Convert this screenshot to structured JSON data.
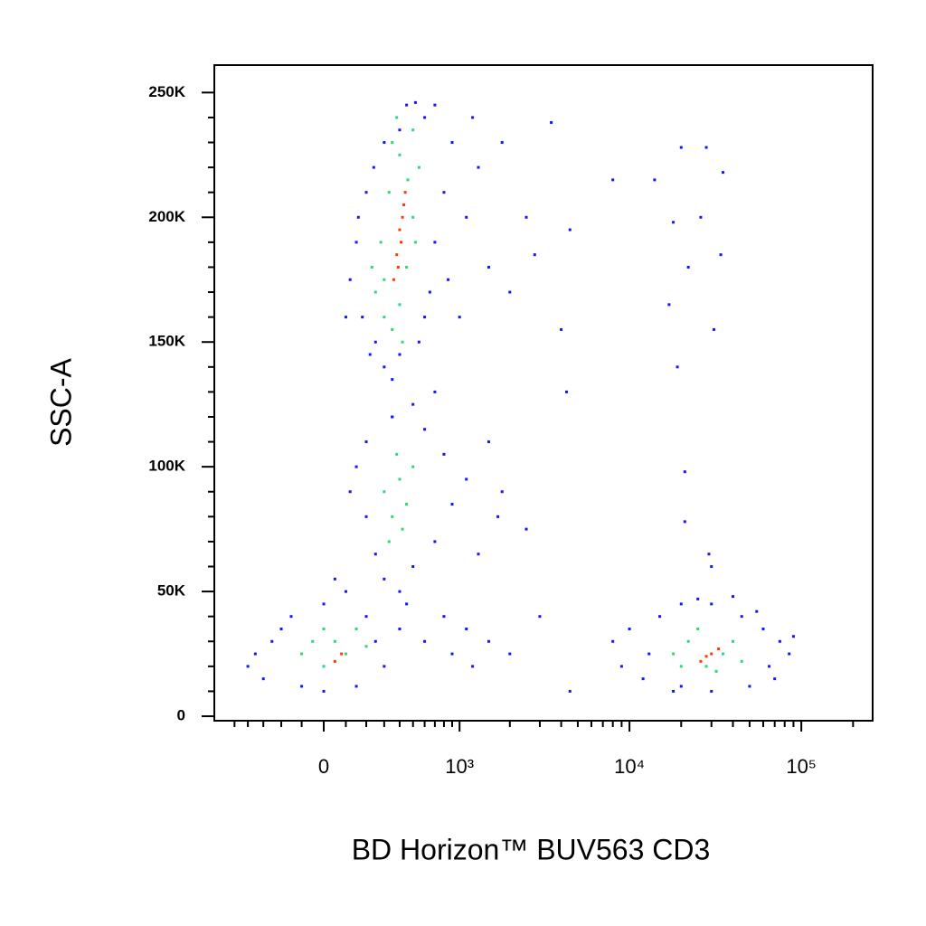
{
  "chart_data": {
    "type": "scatter",
    "xlabel": "BD Horizon™ BUV563 CD3",
    "ylabel": "SSC-A",
    "xscale": "biexponential",
    "xlim": [
      -683,
      260000
    ],
    "ylim": [
      -1800,
      261000
    ],
    "xticks": [
      0,
      {
        "value": 1000,
        "label": "10³"
      },
      {
        "value": 10000,
        "label": "10⁴"
      },
      {
        "value": 100000,
        "label": "10⁵"
      }
    ],
    "xminorticks": [
      -500,
      -400,
      -300,
      -200,
      -100,
      100,
      200,
      300,
      400,
      500,
      600,
      700,
      800,
      900,
      2000,
      3000,
      4000,
      5000,
      6000,
      7000,
      8000,
      9000,
      20000,
      30000,
      40000,
      50000,
      60000,
      70000,
      80000,
      90000,
      200000
    ],
    "yticks": [
      {
        "value": 0,
        "label": "0"
      },
      {
        "value": 50000,
        "label": "50K"
      },
      {
        "value": 100000,
        "label": "100K"
      },
      {
        "value": 150000,
        "label": "150K"
      },
      {
        "value": 200000,
        "label": "200K"
      },
      {
        "value": 250000,
        "label": "250K"
      }
    ],
    "yminorticks": [
      10000,
      20000,
      30000,
      40000,
      60000,
      70000,
      80000,
      90000,
      110000,
      120000,
      130000,
      140000,
      160000,
      170000,
      180000,
      190000,
      210000,
      220000,
      230000,
      240000
    ],
    "series": [
      {
        "color": "#1414ff",
        "x": [
          250,
          180,
          300,
          350,
          400,
          550,
          650,
          700,
          800,
          900,
          600,
          300,
          200,
          150,
          120,
          450,
          520,
          700,
          1100,
          1500,
          2000,
          1300,
          1800,
          2500,
          1000,
          700,
          500,
          350,
          100,
          160,
          240,
          400,
          850,
          1200,
          600,
          220,
          150,
          200,
          250,
          300,
          400,
          500,
          700,
          900,
          1100,
          1500,
          1800,
          600,
          350,
          200,
          2500,
          1300,
          800,
          120,
          450,
          1700,
          -400,
          -300,
          -250,
          -150,
          0,
          100,
          200,
          250,
          300,
          150,
          0,
          -100,
          -350,
          -200,
          50,
          400,
          600,
          900,
          1200,
          1500,
          800,
          2000,
          1100,
          8000,
          9000,
          12000,
          15000,
          20000,
          30000,
          45000,
          60000,
          75000,
          85000,
          70000,
          50000,
          30000,
          20000,
          10000,
          40000,
          90000,
          13000,
          65000,
          55000,
          25000,
          18000,
          3500,
          4500,
          4000,
          4300,
          20000,
          28000,
          14000,
          35000,
          18000,
          26000,
          22000,
          34000,
          31000,
          17000,
          19000,
          21000,
          21000,
          29000,
          3000,
          8000,
          2800,
          30000,
          4500
        ],
        "y": [
          150000,
          160000,
          140000,
          135000,
          145000,
          150000,
          170000,
          190000,
          210000,
          230000,
          240000,
          230000,
          210000,
          190000,
          175000,
          245000,
          246000,
          245000,
          200000,
          180000,
          170000,
          220000,
          230000,
          200000,
          160000,
          130000,
          125000,
          120000,
          160000,
          200000,
          220000,
          235000,
          175000,
          240000,
          160000,
          145000,
          100000,
          80000,
          65000,
          55000,
          50000,
          60000,
          70000,
          85000,
          95000,
          110000,
          90000,
          115000,
          120000,
          110000,
          75000,
          65000,
          105000,
          90000,
          45000,
          80000,
          20000,
          15000,
          30000,
          40000,
          45000,
          50000,
          40000,
          30000,
          20000,
          12000,
          10000,
          12000,
          25000,
          35000,
          55000,
          35000,
          30000,
          25000,
          20000,
          30000,
          40000,
          25000,
          35000,
          30000,
          20000,
          15000,
          40000,
          45000,
          45000,
          40000,
          35000,
          30000,
          25000,
          15000,
          12000,
          10000,
          12000,
          35000,
          48000,
          32000,
          25000,
          20000,
          42000,
          47000,
          10000,
          238000,
          195000,
          155000,
          130000,
          228000,
          228000,
          215000,
          218000,
          198000,
          200000,
          180000,
          185000,
          155000,
          165000,
          140000,
          98000,
          78000,
          65000,
          40000,
          215000,
          185000,
          60000,
          10000
        ]
      },
      {
        "color": "#2bd97a",
        "x": [
          250,
          300,
          350,
          400,
          450,
          500,
          550,
          500,
          400,
          330,
          280,
          230,
          380,
          460,
          300,
          420,
          520,
          350,
          300,
          350,
          400,
          450,
          380,
          500,
          330,
          420,
          -100,
          0,
          50,
          100,
          150,
          -50,
          200,
          0,
          18000,
          22000,
          28000,
          35000,
          40000,
          25000,
          32000,
          45000,
          20000
        ],
        "y": [
          170000,
          160000,
          155000,
          165000,
          180000,
          200000,
          220000,
          235000,
          225000,
          210000,
          190000,
          180000,
          240000,
          215000,
          175000,
          150000,
          190000,
          230000,
          90000,
          80000,
          95000,
          85000,
          105000,
          100000,
          70000,
          75000,
          25000,
          20000,
          30000,
          25000,
          35000,
          30000,
          28000,
          35000,
          25000,
          30000,
          20000,
          25000,
          30000,
          35000,
          18000,
          22000,
          20000
        ]
      },
      {
        "color": "#ff3a00",
        "x": [
          380,
          420,
          400,
          360,
          440,
          410,
          390,
          430,
          30000,
          26000,
          33000,
          28000,
          50,
          80
        ],
        "y": [
          185000,
          200000,
          195000,
          175000,
          210000,
          190000,
          180000,
          205000,
          25000,
          22000,
          27000,
          24000,
          22000,
          25000
        ]
      }
    ]
  }
}
